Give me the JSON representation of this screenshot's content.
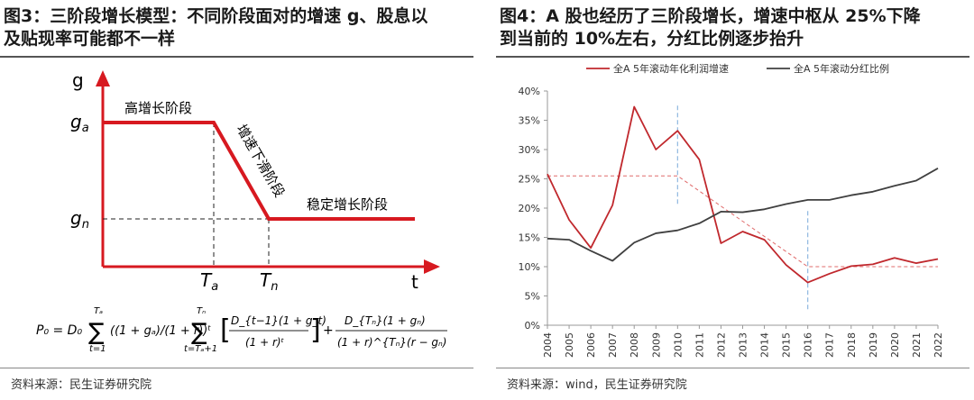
{
  "left": {
    "title": "图3：三阶段增长模型：不同阶段面对的增速 g、股息以及贴现率可能都不一样",
    "title_line1": "图3：三阶段增长模型：不同阶段面对的增速 g、股息以",
    "title_line2": "及贴现率可能都不一样",
    "diagram": {
      "y_axis_label": "g",
      "x_axis_label": "t",
      "g_a_label": "g",
      "g_a_sub": "a",
      "g_n_label": "g",
      "g_n_sub": "n",
      "T_a_label": "T",
      "T_a_sub": "a",
      "T_n_label": "T",
      "T_n_sub": "n",
      "stage1_label": "高增长阶段",
      "stage2_label": "增速下滑阶段",
      "stage3_label": "稳定增长阶段",
      "line_color": "#d71920"
    },
    "formula": {
      "lhs": "P₀ = D₀",
      "term1": "((1 + gₐ)/(1 + r))ᵗ",
      "sum1_upper": "Tₐ",
      "sum1_lower": "t=1",
      "sum2_upper": "Tₙ",
      "sum2_lower": "t=Tₐ+1",
      "term2_num": "D_{t−1}(1 + g_t)",
      "term2_den": "(1 + r)ᵗ",
      "term3_num": "D_{Tₙ}(1 + gₙ)",
      "term3_den": "(1 + r)^{Tₙ}(r − gₙ)"
    },
    "source": "资料来源：民生证券研究院"
  },
  "right": {
    "title_line1": "图4：A 股也经历了三阶段增长，增速中枢从 25%下降",
    "title_line2": "到当前的 10%左右，分红比例逐步抬升",
    "source": "资料来源：wind，民生证券研究院"
  },
  "chart_data": {
    "type": "line",
    "title": "图4：A 股也经历了三阶段增长，增速中枢从 25%下降到当前的 10%左右，分红比例逐步抬升",
    "x": [
      "2004",
      "2005",
      "2006",
      "2007",
      "2008",
      "2009",
      "2010",
      "2011",
      "2012",
      "2013",
      "2014",
      "2015",
      "2016",
      "2017",
      "2018",
      "2019",
      "2020",
      "2021",
      "2022"
    ],
    "ylim": [
      0,
      40
    ],
    "yticks": [
      "0%",
      "5%",
      "10%",
      "15%",
      "20%",
      "25%",
      "30%",
      "35%",
      "40%"
    ],
    "ytick_values": [
      0,
      5,
      10,
      15,
      20,
      25,
      30,
      35,
      40
    ],
    "grid": false,
    "legend_position": "top-left",
    "series": [
      {
        "name": "全A 5年滚动年化利润增速",
        "color": "#c0282d",
        "values": [
          25.8,
          18.0,
          13.2,
          20.5,
          37.3,
          30.0,
          33.2,
          28.3,
          14.0,
          16.0,
          14.6,
          10.3,
          7.3,
          8.8,
          10.1,
          10.4,
          11.5,
          10.6,
          11.3
        ]
      },
      {
        "name": "全A 5年滚动分红比例",
        "color": "#404040",
        "values": [
          14.8,
          14.6,
          12.7,
          11.0,
          14.1,
          15.7,
          16.2,
          17.4,
          19.4,
          19.3,
          19.8,
          20.7,
          21.4,
          21.4,
          22.2,
          22.8,
          23.8,
          24.7,
          26.8
        ]
      }
    ],
    "guide_lines": {
      "red_dashed": [
        [
          "2004",
          25.5
        ],
        [
          "2010",
          25.5
        ],
        [
          "2016",
          10.0
        ],
        [
          "2022",
          10.0
        ]
      ],
      "blue_dashed_x": [
        "2010",
        "2016"
      ],
      "red_dashed_color": "#e06b6b",
      "blue_dashed_color": "#8fb8e0"
    }
  }
}
